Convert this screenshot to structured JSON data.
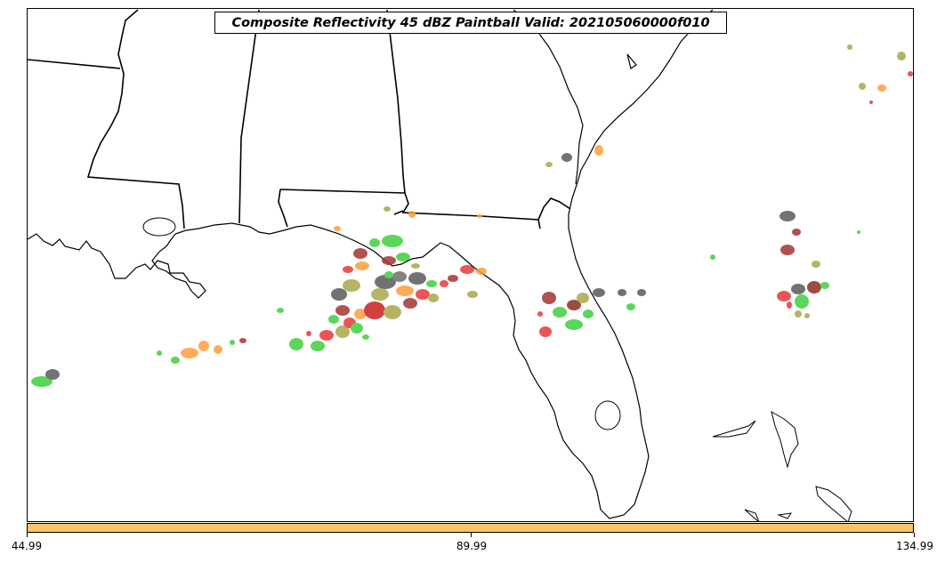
{
  "map": {
    "title": "Composite Reflectivity 45 dBZ Paintball Valid: 202105060000f010",
    "region": "Southeastern United States / Gulf of Mexico",
    "line_color": "#000000",
    "paintball_colors": {
      "green": "#3ecf3e",
      "dark_gray": "#5a5a5a",
      "red": "#e83838",
      "orange": "#ff9d3c",
      "olive": "#a8a84a",
      "brown": "#8b2e1e",
      "dark_red": "#a33434",
      "mid_gray": "#6e6e6e"
    }
  },
  "colorbar": {
    "color": "#ffc266",
    "ticks": [
      "44.99",
      "89.99",
      "134.99"
    ]
  }
}
